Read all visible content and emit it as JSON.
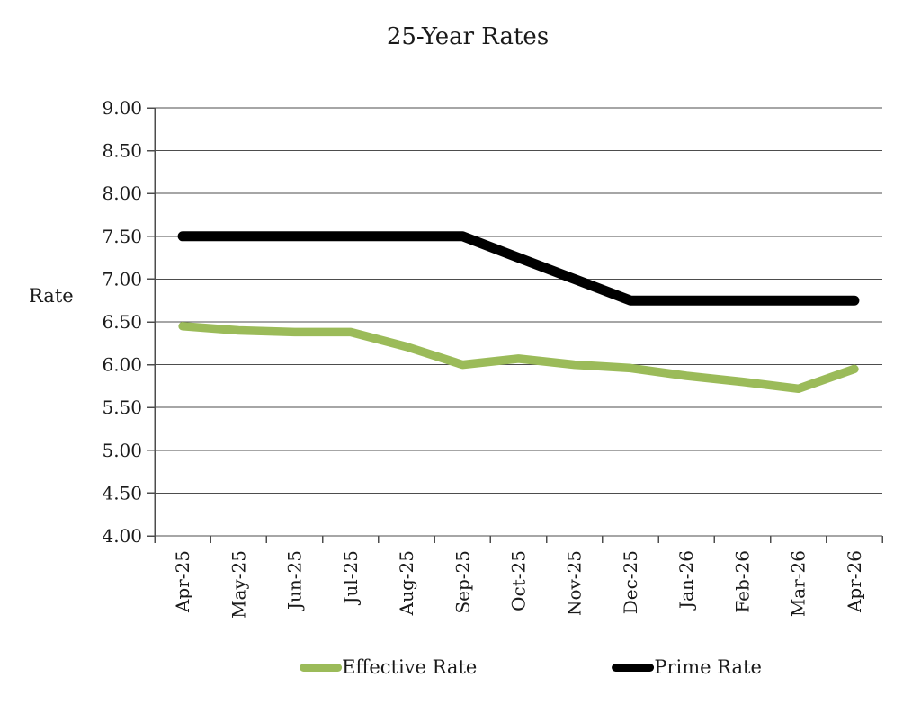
{
  "chart_data": {
    "type": "line",
    "title": "25-Year Rates",
    "ylabel": "Rate",
    "categories": [
      "Apr-25",
      "May-25",
      "Jun-25",
      "Jul-25",
      "Aug-25",
      "Sep-25",
      "Oct-25",
      "Nov-25",
      "Dec-25",
      "Jan-26",
      "Feb-26",
      "Mar-26",
      "Apr-26"
    ],
    "series": [
      {
        "name": "Effective Rate",
        "color": "#9bbb59",
        "values": [
          6.45,
          6.4,
          6.38,
          6.38,
          6.21,
          6.0,
          6.07,
          6.0,
          5.96,
          5.87,
          5.8,
          5.72,
          5.95
        ]
      },
      {
        "name": "Prime Rate",
        "color": "#000000",
        "values": [
          7.5,
          7.5,
          7.5,
          7.5,
          7.5,
          7.5,
          7.25,
          7.0,
          6.75,
          6.75,
          6.75,
          6.75,
          6.75
        ]
      }
    ],
    "ylim": [
      4.0,
      9.0
    ],
    "ytick_step": 0.5,
    "ytick_decimals": 2,
    "grid": "horizontal",
    "gridline_color": "#4d4d4d",
    "legend_position": "bottom",
    "x_label_rotation_deg": -90
  }
}
